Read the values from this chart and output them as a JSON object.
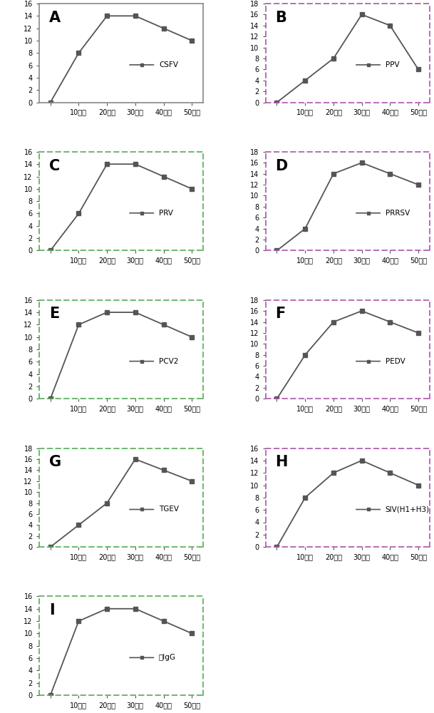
{
  "panels": [
    {
      "label": "A",
      "legend": "CSFV",
      "x": [
        0,
        1,
        2,
        3,
        4,
        5
      ],
      "y": [
        0,
        8,
        14,
        14,
        12,
        10
      ],
      "ylim": [
        0,
        16
      ],
      "yticks": [
        0,
        2,
        4,
        6,
        8,
        10,
        12,
        14,
        16
      ],
      "border_style": "solid",
      "border_color": "#888888"
    },
    {
      "label": "B",
      "legend": "PPV",
      "x": [
        0,
        1,
        2,
        3,
        4,
        5
      ],
      "y": [
        0,
        4,
        8,
        16,
        14,
        6
      ],
      "ylim": [
        0,
        18
      ],
      "yticks": [
        0,
        2,
        4,
        6,
        8,
        10,
        12,
        14,
        16,
        18
      ],
      "border_style": "dashed",
      "border_color": "#aa55aa"
    },
    {
      "label": "C",
      "legend": "PRV",
      "x": [
        0,
        1,
        2,
        3,
        4,
        5
      ],
      "y": [
        0,
        6,
        14,
        14,
        12,
        10
      ],
      "ylim": [
        0,
        16
      ],
      "yticks": [
        0,
        2,
        4,
        6,
        8,
        10,
        12,
        14,
        16
      ],
      "border_style": "dashed",
      "border_color": "#55aa55"
    },
    {
      "label": "D",
      "legend": "PRRSV",
      "x": [
        0,
        1,
        2,
        3,
        4,
        5
      ],
      "y": [
        0,
        4,
        14,
        16,
        14,
        12
      ],
      "ylim": [
        0,
        18
      ],
      "yticks": [
        0,
        2,
        4,
        6,
        8,
        10,
        12,
        14,
        16,
        18
      ],
      "border_style": "dashed",
      "border_color": "#aa55aa"
    },
    {
      "label": "E",
      "legend": "PCV2",
      "x": [
        0,
        1,
        2,
        3,
        4,
        5
      ],
      "y": [
        0,
        12,
        14,
        14,
        12,
        10
      ],
      "ylim": [
        0,
        16
      ],
      "yticks": [
        0,
        2,
        4,
        6,
        8,
        10,
        12,
        14,
        16
      ],
      "border_style": "dashed",
      "border_color": "#55aa55"
    },
    {
      "label": "F",
      "legend": "PEDV",
      "x": [
        0,
        1,
        2,
        3,
        4,
        5
      ],
      "y": [
        0,
        8,
        14,
        16,
        14,
        12
      ],
      "ylim": [
        0,
        18
      ],
      "yticks": [
        0,
        2,
        4,
        6,
        8,
        10,
        12,
        14,
        16,
        18
      ],
      "border_style": "dashed",
      "border_color": "#aa55aa"
    },
    {
      "label": "G",
      "legend": "TGEV",
      "x": [
        0,
        1,
        2,
        3,
        4,
        5
      ],
      "y": [
        0,
        4,
        8,
        16,
        14,
        12
      ],
      "ylim": [
        0,
        18
      ],
      "yticks": [
        0,
        2,
        4,
        6,
        8,
        10,
        12,
        14,
        16,
        18
      ],
      "border_style": "dashed",
      "border_color": "#55aa55"
    },
    {
      "label": "H",
      "legend": "SIV(H1+H3)",
      "x": [
        0,
        1,
        2,
        3,
        4,
        5
      ],
      "y": [
        0,
        8,
        12,
        14,
        12,
        10
      ],
      "ylim": [
        0,
        16
      ],
      "yticks": [
        0,
        2,
        4,
        6,
        8,
        10,
        12,
        14,
        16
      ],
      "border_style": "dashed",
      "border_color": "#aa55aa"
    },
    {
      "label": "I",
      "legend": "猪IgG",
      "x": [
        0,
        1,
        2,
        3,
        4,
        5
      ],
      "y": [
        0,
        12,
        14,
        14,
        12,
        10
      ],
      "ylim": [
        0,
        16
      ],
      "yticks": [
        0,
        2,
        4,
        6,
        8,
        10,
        12,
        14,
        16
      ],
      "border_style": "dashed",
      "border_color": "#55aa55"
    }
  ],
  "xticklabels": [
    "",
    "10分钟",
    "20分钟",
    "30分钟",
    "40分钟",
    "50分钟"
  ],
  "line_color": "#555555",
  "marker": "s",
  "marker_size": 4,
  "label_fontsize": 15,
  "legend_fontsize": 7.5,
  "tick_fontsize": 7
}
